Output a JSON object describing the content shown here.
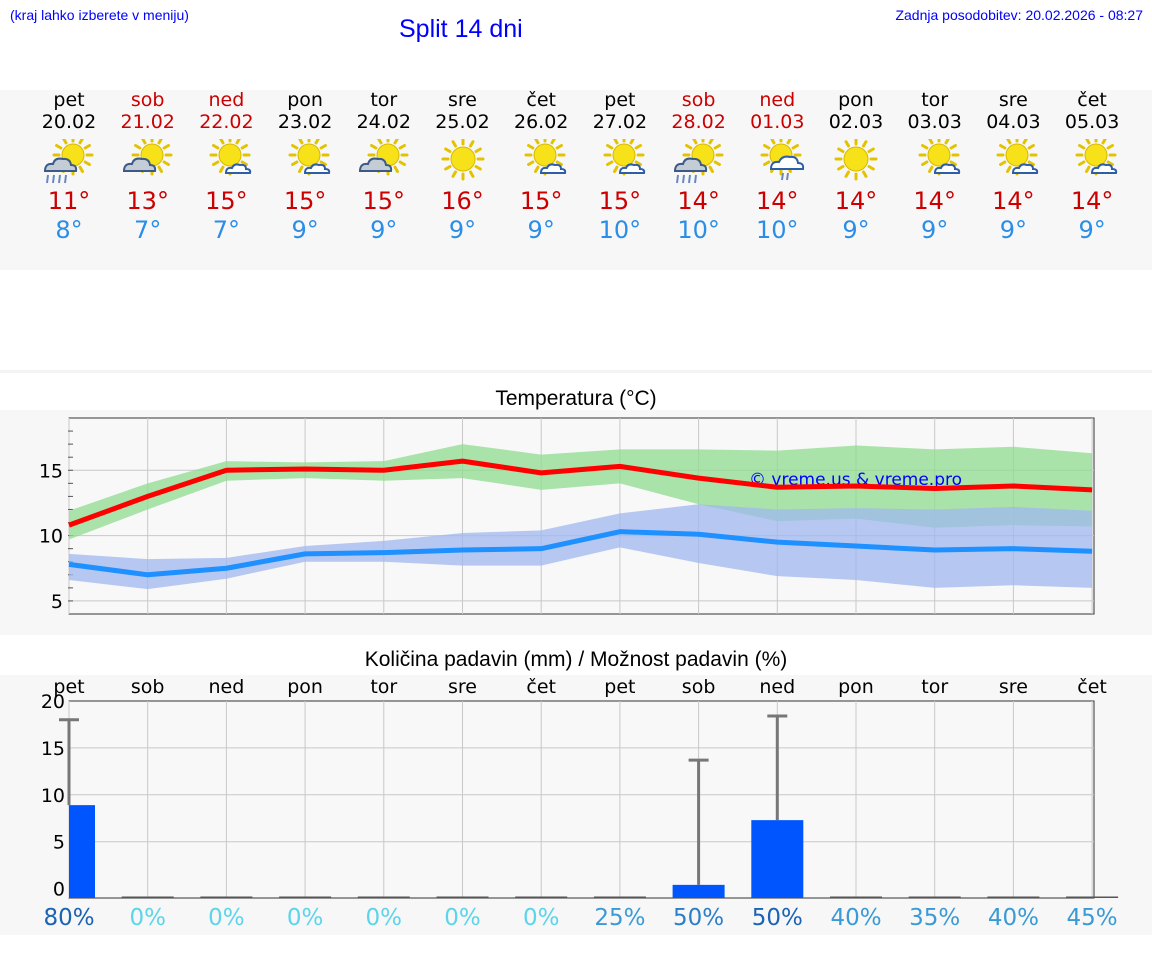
{
  "header": {
    "location_hint": "(kraj lahko izberete v meniju)",
    "title": "Split 14 dni",
    "updated": "Zadnja posodobitev: 20.02.2026 - 08:27"
  },
  "days": [
    {
      "name": "pet",
      "date": "20.02",
      "tmax": "11°",
      "tmin": "8°",
      "weekend": false,
      "icon": "sun-cloud-rain-icon",
      "rain_pct": "80%",
      "pct_color": "#1a63b5"
    },
    {
      "name": "sob",
      "date": "21.02",
      "tmax": "13°",
      "tmin": "7°",
      "weekend": true,
      "icon": "sun-cloud-icon",
      "rain_pct": "0%",
      "pct_color": "#5cd4ec"
    },
    {
      "name": "ned",
      "date": "22.02",
      "tmax": "15°",
      "tmin": "7°",
      "weekend": true,
      "icon": "sun-small-cloud-icon",
      "rain_pct": "0%",
      "pct_color": "#5cd4ec"
    },
    {
      "name": "pon",
      "date": "23.02",
      "tmax": "15°",
      "tmin": "9°",
      "weekend": false,
      "icon": "sun-small-cloud-icon",
      "rain_pct": "0%",
      "pct_color": "#5cd4ec"
    },
    {
      "name": "tor",
      "date": "24.02",
      "tmax": "15°",
      "tmin": "9°",
      "weekend": false,
      "icon": "sun-cloud-icon",
      "rain_pct": "0%",
      "pct_color": "#5cd4ec"
    },
    {
      "name": "sre",
      "date": "25.02",
      "tmax": "16°",
      "tmin": "9°",
      "weekend": false,
      "icon": "sun-icon",
      "rain_pct": "0%",
      "pct_color": "#5cd4ec"
    },
    {
      "name": "čet",
      "date": "26.02",
      "tmax": "15°",
      "tmin": "9°",
      "weekend": false,
      "icon": "sun-small-cloud-icon",
      "rain_pct": "0%",
      "pct_color": "#5cd4ec"
    },
    {
      "name": "pet",
      "date": "27.02",
      "tmax": "15°",
      "tmin": "10°",
      "weekend": false,
      "icon": "sun-small-cloud-icon",
      "rain_pct": "25%",
      "pct_color": "#3a9ad6"
    },
    {
      "name": "sob",
      "date": "28.02",
      "tmax": "14°",
      "tmin": "10°",
      "weekend": true,
      "icon": "sun-cloud-rain-icon",
      "rain_pct": "50%",
      "pct_color": "#2b7fc8"
    },
    {
      "name": "ned",
      "date": "01.03",
      "tmax": "14°",
      "tmin": "10°",
      "weekend": true,
      "icon": "sun-cloud-light-rain-icon",
      "rain_pct": "50%",
      "pct_color": "#1a63b5"
    },
    {
      "name": "pon",
      "date": "02.03",
      "tmax": "14°",
      "tmin": "9°",
      "weekend": false,
      "icon": "sun-icon",
      "rain_pct": "40%",
      "pct_color": "#3a9ad6"
    },
    {
      "name": "tor",
      "date": "03.03",
      "tmax": "14°",
      "tmin": "9°",
      "weekend": false,
      "icon": "sun-small-cloud-icon",
      "rain_pct": "35%",
      "pct_color": "#3a9ad6"
    },
    {
      "name": "sre",
      "date": "04.03",
      "tmax": "14°",
      "tmin": "9°",
      "weekend": false,
      "icon": "sun-small-cloud-icon",
      "rain_pct": "40%",
      "pct_color": "#3a9ad6"
    },
    {
      "name": "čet",
      "date": "05.03",
      "tmax": "14°",
      "tmin": "9°",
      "weekend": false,
      "icon": "sun-small-cloud-icon",
      "rain_pct": "45%",
      "pct_color": "#3a9ad6"
    }
  ],
  "chart_data": [
    {
      "type": "line",
      "title": "Temperatura (°C)",
      "watermark": "© vreme.us & vreme.pro",
      "ylim": [
        4,
        19
      ],
      "yticks": [
        5,
        10,
        15
      ],
      "x_days": 14,
      "series": [
        {
          "name": "max",
          "color": "#ff0000",
          "values": [
            10.8,
            13.0,
            15.0,
            15.1,
            15.0,
            15.7,
            14.8,
            15.3,
            14.4,
            13.7,
            13.8,
            13.6,
            13.8,
            13.5
          ],
          "band_low": [
            9.7,
            12.0,
            14.2,
            14.4,
            14.2,
            14.4,
            13.5,
            14.0,
            12.4,
            11.1,
            11.3,
            10.6,
            10.8,
            10.7
          ],
          "band_high": [
            11.9,
            14.0,
            15.7,
            15.6,
            15.7,
            17.0,
            16.2,
            16.6,
            16.6,
            16.5,
            16.9,
            16.6,
            16.8,
            16.3
          ],
          "band_color": "#8fdc8f"
        },
        {
          "name": "min",
          "color": "#1e90ff",
          "values": [
            7.8,
            7.0,
            7.5,
            8.6,
            8.7,
            8.9,
            9.0,
            10.3,
            10.1,
            9.5,
            9.2,
            8.9,
            9.0,
            8.8
          ],
          "band_low": [
            6.6,
            5.9,
            6.7,
            8.0,
            8.0,
            7.7,
            7.7,
            9.1,
            7.9,
            6.9,
            6.6,
            6.0,
            6.2,
            6.0
          ],
          "band_high": [
            8.6,
            8.2,
            8.3,
            9.2,
            9.6,
            10.2,
            10.4,
            11.7,
            12.4,
            12.0,
            12.1,
            12.0,
            12.2,
            11.9
          ],
          "band_color": "#a0b8f0"
        }
      ]
    },
    {
      "type": "bar",
      "title": "Količina padavin (mm) / Možnost padavin (%)",
      "ylim": [
        -1,
        20
      ],
      "yticks": [
        0,
        5,
        10,
        15,
        20
      ],
      "categories": [
        "pet",
        "sob",
        "ned",
        "pon",
        "tor",
        "sre",
        "čet",
        "pet",
        "sob",
        "ned",
        "pon",
        "tor",
        "sre",
        "čet"
      ],
      "values": [
        8.9,
        0,
        0,
        0,
        0,
        0,
        0,
        0,
        0.4,
        7.3,
        0,
        0,
        0,
        0
      ],
      "error_high": [
        18,
        0,
        0,
        0,
        0,
        0,
        0,
        0,
        13.7,
        18.4,
        0,
        0,
        0,
        0
      ],
      "bar_color": "#0055ff"
    }
  ]
}
